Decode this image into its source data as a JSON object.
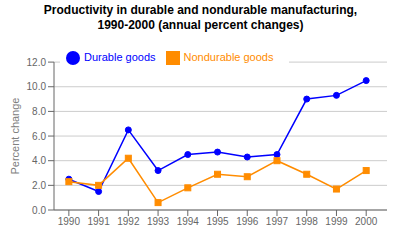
{
  "chart_data": {
    "type": "line",
    "title": "Productivity in durable and nondurable manufacturing,\n1990-2000 (annual percent changes)",
    "y_label": "Percent change",
    "x": [
      1990,
      1991,
      1992,
      1993,
      1994,
      1995,
      1996,
      1997,
      1998,
      1999,
      2000
    ],
    "series": [
      {
        "name": "Durable goods",
        "color": "#0000ff",
        "marker": "circle",
        "values": [
          2.5,
          1.5,
          6.5,
          3.2,
          4.5,
          4.7,
          4.3,
          4.5,
          9.0,
          9.3,
          10.5
        ]
      },
      {
        "name": "Nondurable goods",
        "color": "#ff8c00",
        "marker": "square",
        "values": [
          2.3,
          2.0,
          4.2,
          0.6,
          1.8,
          2.9,
          2.7,
          4.0,
          2.9,
          1.7,
          3.2
        ]
      }
    ],
    "xlim": [
      1989.5,
      2000.7
    ],
    "xticks": [
      1990,
      1991,
      1992,
      1993,
      1994,
      1995,
      1996,
      1997,
      1998,
      1999,
      2000
    ],
    "ylim": [
      0.0,
      12.0
    ],
    "yticks": [
      {
        "value": 0.0,
        "label": "0.0"
      },
      {
        "value": 2.0,
        "label": "2.0"
      },
      {
        "value": 4.0,
        "label": "4.0"
      },
      {
        "value": 6.0,
        "label": "6.0"
      },
      {
        "value": 8.0,
        "label": "8.0"
      },
      {
        "value": 10.0,
        "label": "10.0"
      },
      {
        "value": 12.0,
        "label": "12.0"
      }
    ],
    "grid": "y",
    "legend": "upper left"
  }
}
